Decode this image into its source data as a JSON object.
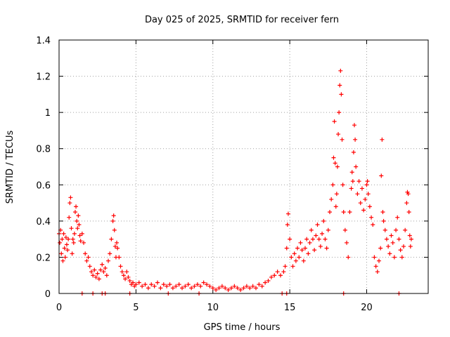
{
  "chart_data": {
    "type": "scatter",
    "title": "Day 025 of 2025, SRMTID for receiver fern",
    "xlabel": "GPS time / hours",
    "ylabel": "SRMTID / TECUs",
    "xlim": [
      0,
      24
    ],
    "ylim": [
      0,
      1.4
    ],
    "grid": true,
    "marker": "+",
    "color": "#ff0000",
    "xticks": [
      {
        "value": 0,
        "label": "0"
      },
      {
        "value": 5,
        "label": "5"
      },
      {
        "value": 10,
        "label": "10"
      },
      {
        "value": 15,
        "label": "15"
      },
      {
        "value": 20,
        "label": "20"
      }
    ],
    "yticks": [
      {
        "value": 0,
        "label": "0"
      },
      {
        "value": 0.2,
        "label": "0.2"
      },
      {
        "value": 0.4,
        "label": "0.4"
      },
      {
        "value": 0.6,
        "label": "0.6"
      },
      {
        "value": 0.8,
        "label": "0.8"
      },
      {
        "value": 1.0,
        "label": "1"
      },
      {
        "value": 1.2,
        "label": "1.2"
      },
      {
        "value": 1.4,
        "label": "1.4"
      }
    ],
    "points": [
      [
        0.0,
        0.33
      ],
      [
        0.05,
        0.28
      ],
      [
        0.1,
        0.35
      ],
      [
        0.15,
        0.22
      ],
      [
        0.2,
        0.3
      ],
      [
        0.25,
        0.18
      ],
      [
        0.3,
        0.33
      ],
      [
        0.35,
        0.25
      ],
      [
        0.4,
        0.2
      ],
      [
        0.45,
        0.31
      ],
      [
        0.5,
        0.27
      ],
      [
        0.55,
        0.24
      ],
      [
        0.6,
        0.3
      ],
      [
        0.65,
        0.42
      ],
      [
        0.7,
        0.5
      ],
      [
        0.75,
        0.53
      ],
      [
        0.8,
        0.36
      ],
      [
        0.85,
        0.22
      ],
      [
        0.9,
        0.3
      ],
      [
        0.95,
        0.28
      ],
      [
        1.0,
        0.33
      ],
      [
        1.05,
        0.45
      ],
      [
        1.1,
        0.48
      ],
      [
        1.15,
        0.4
      ],
      [
        1.2,
        0.36
      ],
      [
        1.25,
        0.43
      ],
      [
        1.3,
        0.38
      ],
      [
        1.35,
        0.32
      ],
      [
        1.4,
        0.29
      ],
      [
        1.5,
        0.33
      ],
      [
        1.6,
        0.28
      ],
      [
        1.7,
        0.22
      ],
      [
        1.8,
        0.18
      ],
      [
        1.9,
        0.2
      ],
      [
        2.0,
        0.15
      ],
      [
        2.1,
        0.12
      ],
      [
        2.2,
        0.1
      ],
      [
        2.3,
        0.13
      ],
      [
        2.4,
        0.09
      ],
      [
        2.5,
        0.11
      ],
      [
        2.6,
        0.08
      ],
      [
        2.7,
        0.13
      ],
      [
        2.8,
        0.16
      ],
      [
        2.9,
        0.12
      ],
      [
        3.0,
        0.14
      ],
      [
        3.1,
        0.1
      ],
      [
        3.2,
        0.18
      ],
      [
        3.3,
        0.22
      ],
      [
        3.4,
        0.3
      ],
      [
        3.5,
        0.4
      ],
      [
        3.55,
        0.43
      ],
      [
        3.6,
        0.35
      ],
      [
        3.65,
        0.26
      ],
      [
        3.7,
        0.2
      ],
      [
        3.75,
        0.28
      ],
      [
        3.8,
        0.25
      ],
      [
        3.9,
        0.2
      ],
      [
        4.0,
        0.15
      ],
      [
        4.1,
        0.12
      ],
      [
        4.2,
        0.1
      ],
      [
        4.3,
        0.08
      ],
      [
        4.4,
        0.12
      ],
      [
        4.5,
        0.09
      ],
      [
        4.6,
        0.07
      ],
      [
        4.7,
        0.05
      ],
      [
        4.8,
        0.06
      ],
      [
        4.9,
        0.04
      ],
      [
        5.0,
        0.05
      ],
      [
        5.2,
        0.06
      ],
      [
        5.4,
        0.04
      ],
      [
        5.6,
        0.05
      ],
      [
        5.8,
        0.03
      ],
      [
        6.0,
        0.05
      ],
      [
        6.2,
        0.04
      ],
      [
        6.4,
        0.06
      ],
      [
        6.6,
        0.03
      ],
      [
        6.8,
        0.05
      ],
      [
        7.0,
        0.04
      ],
      [
        7.2,
        0.05
      ],
      [
        7.4,
        0.03
      ],
      [
        7.6,
        0.04
      ],
      [
        7.8,
        0.05
      ],
      [
        8.0,
        0.03
      ],
      [
        8.2,
        0.04
      ],
      [
        8.4,
        0.05
      ],
      [
        8.6,
        0.03
      ],
      [
        8.8,
        0.04
      ],
      [
        9.0,
        0.05
      ],
      [
        9.2,
        0.04
      ],
      [
        9.4,
        0.06
      ],
      [
        9.6,
        0.05
      ],
      [
        9.8,
        0.04
      ],
      [
        10.0,
        0.03
      ],
      [
        10.2,
        0.02
      ],
      [
        10.4,
        0.03
      ],
      [
        10.6,
        0.04
      ],
      [
        10.8,
        0.03
      ],
      [
        11.0,
        0.02
      ],
      [
        11.2,
        0.03
      ],
      [
        11.4,
        0.04
      ],
      [
        11.6,
        0.03
      ],
      [
        11.8,
        0.02
      ],
      [
        12.0,
        0.03
      ],
      [
        12.2,
        0.04
      ],
      [
        12.4,
        0.03
      ],
      [
        12.6,
        0.04
      ],
      [
        12.8,
        0.03
      ],
      [
        13.0,
        0.05
      ],
      [
        13.2,
        0.04
      ],
      [
        13.4,
        0.06
      ],
      [
        13.6,
        0.07
      ],
      [
        13.8,
        0.09
      ],
      [
        14.0,
        0.1
      ],
      [
        14.2,
        0.12
      ],
      [
        14.4,
        0.1
      ],
      [
        14.6,
        0.12
      ],
      [
        14.7,
        0.15
      ],
      [
        14.8,
        0.25
      ],
      [
        14.85,
        0.38
      ],
      [
        14.9,
        0.44
      ],
      [
        15.0,
        0.3
      ],
      [
        15.1,
        0.2
      ],
      [
        15.2,
        0.15
      ],
      [
        15.3,
        0.22
      ],
      [
        15.4,
        0.18
      ],
      [
        15.5,
        0.25
      ],
      [
        15.6,
        0.2
      ],
      [
        15.7,
        0.28
      ],
      [
        15.8,
        0.24
      ],
      [
        15.9,
        0.18
      ],
      [
        16.0,
        0.25
      ],
      [
        16.1,
        0.3
      ],
      [
        16.2,
        0.22
      ],
      [
        16.3,
        0.28
      ],
      [
        16.4,
        0.35
      ],
      [
        16.5,
        0.3
      ],
      [
        16.6,
        0.24
      ],
      [
        16.7,
        0.32
      ],
      [
        16.8,
        0.38
      ],
      [
        16.9,
        0.3
      ],
      [
        17.0,
        0.26
      ],
      [
        17.1,
        0.33
      ],
      [
        17.2,
        0.4
      ],
      [
        17.3,
        0.3
      ],
      [
        17.4,
        0.25
      ],
      [
        17.5,
        0.35
      ],
      [
        17.6,
        0.45
      ],
      [
        17.7,
        0.52
      ],
      [
        17.8,
        0.6
      ],
      [
        17.85,
        0.75
      ],
      [
        17.9,
        0.95
      ],
      [
        17.95,
        0.72
      ],
      [
        18.0,
        0.48
      ],
      [
        18.05,
        0.55
      ],
      [
        18.1,
        0.7
      ],
      [
        18.15,
        0.88
      ],
      [
        18.2,
        1.0
      ],
      [
        18.25,
        1.15
      ],
      [
        18.3,
        1.23
      ],
      [
        18.35,
        1.1
      ],
      [
        18.4,
        0.85
      ],
      [
        18.45,
        0.6
      ],
      [
        18.5,
        0.45
      ],
      [
        18.6,
        0.35
      ],
      [
        18.7,
        0.28
      ],
      [
        18.8,
        0.2
      ],
      [
        18.9,
        0.45
      ],
      [
        19.0,
        0.58
      ],
      [
        19.05,
        0.67
      ],
      [
        19.1,
        0.62
      ],
      [
        19.15,
        0.78
      ],
      [
        19.2,
        0.93
      ],
      [
        19.25,
        0.85
      ],
      [
        19.3,
        0.7
      ],
      [
        19.4,
        0.55
      ],
      [
        19.5,
        0.62
      ],
      [
        19.6,
        0.5
      ],
      [
        19.7,
        0.58
      ],
      [
        19.8,
        0.46
      ],
      [
        19.9,
        0.52
      ],
      [
        20.0,
        0.6
      ],
      [
        20.05,
        0.62
      ],
      [
        20.1,
        0.55
      ],
      [
        20.2,
        0.48
      ],
      [
        20.3,
        0.42
      ],
      [
        20.4,
        0.38
      ],
      [
        20.5,
        0.2
      ],
      [
        20.6,
        0.15
      ],
      [
        20.7,
        0.12
      ],
      [
        20.8,
        0.18
      ],
      [
        20.9,
        0.25
      ],
      [
        20.95,
        0.65
      ],
      [
        21.0,
        0.85
      ],
      [
        21.05,
        0.45
      ],
      [
        21.1,
        0.4
      ],
      [
        21.2,
        0.35
      ],
      [
        21.3,
        0.3
      ],
      [
        21.4,
        0.26
      ],
      [
        21.5,
        0.22
      ],
      [
        21.6,
        0.32
      ],
      [
        21.7,
        0.28
      ],
      [
        21.8,
        0.2
      ],
      [
        21.9,
        0.35
      ],
      [
        22.0,
        0.42
      ],
      [
        22.1,
        0.3
      ],
      [
        22.2,
        0.24
      ],
      [
        22.3,
        0.2
      ],
      [
        22.4,
        0.26
      ],
      [
        22.5,
        0.35
      ],
      [
        22.6,
        0.5
      ],
      [
        22.65,
        0.56
      ],
      [
        22.7,
        0.55
      ],
      [
        22.75,
        0.45
      ],
      [
        22.8,
        0.32
      ],
      [
        22.85,
        0.26
      ],
      [
        22.9,
        0.3
      ],
      [
        1.5,
        0.0
      ],
      [
        2.2,
        0.0
      ],
      [
        2.8,
        0.0
      ],
      [
        3.0,
        0.0
      ],
      [
        4.6,
        0.0
      ],
      [
        7.1,
        0.0
      ],
      [
        9.1,
        0.0
      ],
      [
        14.5,
        0.0
      ],
      [
        14.8,
        0.0
      ],
      [
        18.5,
        0.0
      ],
      [
        22.1,
        0.0
      ]
    ]
  }
}
